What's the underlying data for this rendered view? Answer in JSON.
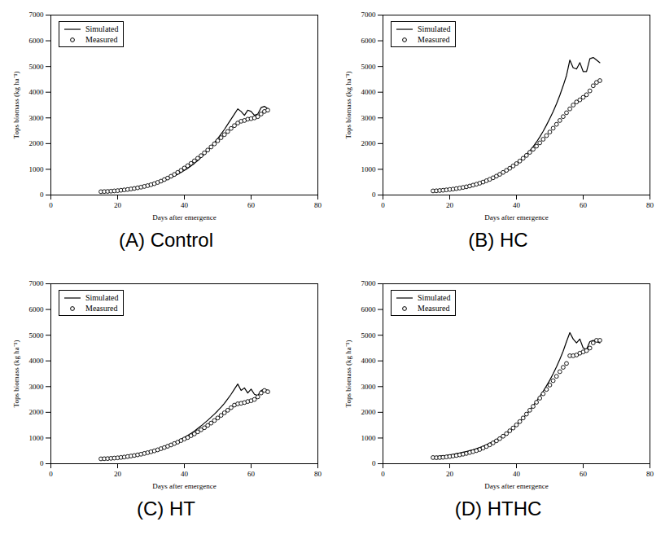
{
  "chart_data": [
    {
      "type": "line",
      "title": "(A) Control",
      "x_label": "Days after emergence",
      "y_label": "Tops biomass (kg ha⁻¹)",
      "xlim": [
        0,
        80
      ],
      "xticks": [
        0,
        20,
        40,
        60,
        80
      ],
      "ylim": [
        0,
        7000
      ],
      "yticks": [
        0,
        1000,
        2000,
        3000,
        4000,
        5000,
        6000,
        7000
      ],
      "grid": false,
      "legend": "top-left",
      "x": [
        15,
        16,
        17,
        18,
        19,
        20,
        21,
        22,
        23,
        24,
        25,
        26,
        27,
        28,
        29,
        30,
        31,
        32,
        33,
        34,
        35,
        36,
        37,
        38,
        39,
        40,
        41,
        42,
        43,
        44,
        45,
        46,
        47,
        48,
        49,
        50,
        51,
        52,
        53,
        54,
        55,
        56,
        57,
        58,
        59,
        60,
        61,
        62,
        63,
        64,
        65
      ],
      "series": [
        {
          "name": "Simulated",
          "type": "line",
          "line_style": "solid",
          "color": "#000000",
          "values": [
            140,
            145,
            150,
            160,
            170,
            180,
            190,
            205,
            220,
            240,
            260,
            280,
            300,
            330,
            360,
            390,
            430,
            470,
            510,
            560,
            620,
            680,
            740,
            810,
            880,
            960,
            1040,
            1130,
            1230,
            1340,
            1460,
            1590,
            1730,
            1880,
            2040,
            2200,
            2370,
            2550,
            2750,
            2950,
            3150,
            3350,
            3250,
            3100,
            3300,
            3250,
            3100,
            3150,
            3400,
            3450,
            3350
          ]
        },
        {
          "name": "Measured",
          "type": "scatter",
          "marker": "circle",
          "color": "#000000",
          "values": [
            130,
            135,
            140,
            150,
            160,
            170,
            185,
            200,
            215,
            235,
            255,
            280,
            305,
            335,
            365,
            400,
            440,
            490,
            540,
            600,
            660,
            730,
            800,
            880,
            960,
            1050,
            1140,
            1230,
            1330,
            1430,
            1530,
            1640,
            1750,
            1870,
            1990,
            2110,
            2230,
            2350,
            2470,
            2590,
            2700,
            2800,
            2870,
            2900,
            2950,
            2970,
            3000,
            3050,
            3150,
            3250,
            3300
          ]
        }
      ]
    },
    {
      "type": "line",
      "title": "(B) HC",
      "x_label": "Days after emergence",
      "y_label": "Tops biomass (kg ha⁻¹)",
      "xlim": [
        0,
        80
      ],
      "xticks": [
        0,
        20,
        40,
        60,
        80
      ],
      "ylim": [
        0,
        7000
      ],
      "yticks": [
        0,
        1000,
        2000,
        3000,
        4000,
        5000,
        6000,
        7000
      ],
      "grid": false,
      "legend": "top-left",
      "x": [
        15,
        16,
        17,
        18,
        19,
        20,
        21,
        22,
        23,
        24,
        25,
        26,
        27,
        28,
        29,
        30,
        31,
        32,
        33,
        34,
        35,
        36,
        37,
        38,
        39,
        40,
        41,
        42,
        43,
        44,
        45,
        46,
        47,
        48,
        49,
        50,
        51,
        52,
        53,
        54,
        55,
        56,
        57,
        58,
        59,
        60,
        61,
        62,
        63,
        64,
        65
      ],
      "series": [
        {
          "name": "Simulated",
          "type": "line",
          "line_style": "solid",
          "color": "#000000",
          "values": [
            160,
            165,
            175,
            185,
            200,
            215,
            230,
            250,
            270,
            295,
            320,
            350,
            385,
            420,
            460,
            505,
            555,
            610,
            670,
            735,
            805,
            880,
            960,
            1040,
            1130,
            1220,
            1330,
            1450,
            1580,
            1720,
            1880,
            2060,
            2260,
            2480,
            2720,
            2980,
            3250,
            3550,
            3880,
            4250,
            4650,
            5250,
            4950,
            4900,
            5150,
            4800,
            4800,
            5300,
            5350,
            5250,
            5150
          ]
        },
        {
          "name": "Measured",
          "type": "scatter",
          "marker": "circle",
          "color": "#000000",
          "values": [
            160,
            165,
            175,
            185,
            200,
            215,
            230,
            250,
            270,
            295,
            320,
            350,
            385,
            420,
            460,
            505,
            555,
            610,
            670,
            735,
            805,
            880,
            960,
            1040,
            1130,
            1220,
            1320,
            1430,
            1540,
            1660,
            1780,
            1900,
            2030,
            2170,
            2310,
            2450,
            2600,
            2750,
            2900,
            3050,
            3200,
            3350,
            3500,
            3620,
            3700,
            3800,
            3900,
            4050,
            4250,
            4380,
            4450
          ]
        }
      ]
    },
    {
      "type": "line",
      "title": "(C) HT",
      "x_label": "Days after emergence",
      "y_label": "Tops biomass (kg ha⁻¹)",
      "xlim": [
        0,
        80
      ],
      "xticks": [
        0,
        20,
        40,
        60,
        80
      ],
      "ylim": [
        0,
        7000
      ],
      "yticks": [
        0,
        1000,
        2000,
        3000,
        4000,
        5000,
        6000,
        7000
      ],
      "grid": false,
      "legend": "top-left",
      "x": [
        15,
        16,
        17,
        18,
        19,
        20,
        21,
        22,
        23,
        24,
        25,
        26,
        27,
        28,
        29,
        30,
        31,
        32,
        33,
        34,
        35,
        36,
        37,
        38,
        39,
        40,
        41,
        42,
        43,
        44,
        45,
        46,
        47,
        48,
        49,
        50,
        51,
        52,
        53,
        54,
        55,
        56,
        57,
        58,
        59,
        60,
        61,
        62,
        63,
        64,
        65
      ],
      "series": [
        {
          "name": "Simulated",
          "type": "line",
          "line_style": "solid",
          "color": "#000000",
          "values": [
            190,
            195,
            205,
            215,
            225,
            235,
            250,
            265,
            285,
            305,
            325,
            350,
            375,
            405,
            435,
            470,
            510,
            550,
            595,
            645,
            700,
            755,
            815,
            880,
            950,
            1020,
            1100,
            1180,
            1270,
            1370,
            1470,
            1580,
            1690,
            1810,
            1930,
            2060,
            2200,
            2350,
            2520,
            2700,
            2900,
            3100,
            2850,
            2950,
            2750,
            2900,
            2700,
            2650,
            2850,
            2900,
            2850
          ]
        },
        {
          "name": "Measured",
          "type": "scatter",
          "marker": "circle",
          "color": "#000000",
          "values": [
            190,
            195,
            200,
            210,
            220,
            230,
            245,
            260,
            280,
            300,
            320,
            345,
            370,
            400,
            430,
            465,
            500,
            540,
            585,
            630,
            680,
            730,
            785,
            840,
            900,
            960,
            1020,
            1090,
            1160,
            1240,
            1320,
            1400,
            1490,
            1580,
            1680,
            1780,
            1880,
            1980,
            2080,
            2180,
            2280,
            2330,
            2350,
            2380,
            2420,
            2450,
            2500,
            2600,
            2750,
            2850,
            2800
          ]
        }
      ]
    },
    {
      "type": "line",
      "title": "(D) HTHC",
      "x_label": "Days after emergence",
      "y_label": "Tops biomass (kg ha⁻¹)",
      "xlim": [
        0,
        80
      ],
      "xticks": [
        0,
        20,
        40,
        60,
        80
      ],
      "ylim": [
        0,
        7000
      ],
      "yticks": [
        0,
        1000,
        2000,
        3000,
        4000,
        5000,
        6000,
        7000
      ],
      "grid": false,
      "legend": "top-left",
      "x": [
        15,
        16,
        17,
        18,
        19,
        20,
        21,
        22,
        23,
        24,
        25,
        26,
        27,
        28,
        29,
        30,
        31,
        32,
        33,
        34,
        35,
        36,
        37,
        38,
        39,
        40,
        41,
        42,
        43,
        44,
        45,
        46,
        47,
        48,
        49,
        50,
        51,
        52,
        53,
        54,
        55,
        56,
        57,
        58,
        59,
        60,
        61,
        62,
        63,
        64,
        65
      ],
      "series": [
        {
          "name": "Simulated",
          "type": "line",
          "line_style": "solid",
          "color": "#000000",
          "values": [
            280,
            285,
            295,
            310,
            325,
            345,
            365,
            390,
            415,
            445,
            475,
            510,
            545,
            585,
            630,
            680,
            735,
            795,
            860,
            930,
            1005,
            1090,
            1180,
            1280,
            1390,
            1505,
            1630,
            1770,
            1920,
            2080,
            2250,
            2430,
            2620,
            2820,
            3030,
            3250,
            3500,
            3770,
            4060,
            4380,
            4750,
            5100,
            4850,
            4700,
            4850,
            4500,
            4450,
            4750,
            4800,
            4750,
            4700
          ]
        },
        {
          "name": "Measured",
          "type": "scatter",
          "marker": "circle",
          "color": "#000000",
          "values": [
            240,
            235,
            240,
            250,
            265,
            280,
            300,
            320,
            345,
            370,
            400,
            435,
            470,
            510,
            555,
            610,
            670,
            735,
            810,
            890,
            975,
            1070,
            1170,
            1280,
            1390,
            1510,
            1640,
            1780,
            1930,
            2080,
            2230,
            2390,
            2550,
            2720,
            2890,
            3060,
            3230,
            3400,
            3580,
            3750,
            3900,
            4200,
            4200,
            4230,
            4300,
            4350,
            4400,
            4500,
            4700,
            4800,
            4800
          ]
        }
      ]
    }
  ]
}
